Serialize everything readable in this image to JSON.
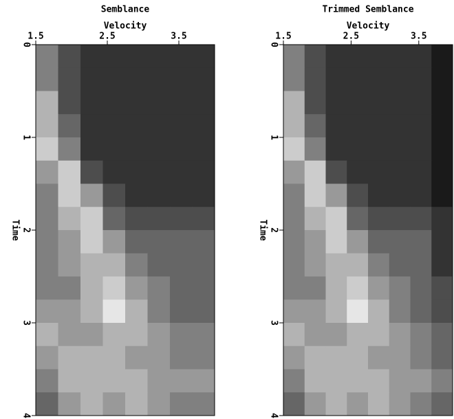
{
  "chart_data": [
    {
      "type": "heatmap",
      "title": "Semblance",
      "xlabel": "Velocity",
      "ylabel": "Time",
      "xlim": [
        1.5,
        4.0
      ],
      "xticks": [
        1.5,
        2.5,
        3.5
      ],
      "ylim": [
        0,
        4
      ],
      "yticks": [
        0,
        1,
        2,
        3,
        4
      ],
      "y_inverted": true,
      "z": [
        [
          0.5,
          0.3,
          0.2,
          0.2,
          0.2,
          0.2,
          0.2,
          0.2
        ],
        [
          0.5,
          0.3,
          0.2,
          0.2,
          0.2,
          0.2,
          0.2,
          0.2
        ],
        [
          0.7,
          0.3,
          0.2,
          0.2,
          0.2,
          0.2,
          0.2,
          0.2
        ],
        [
          0.7,
          0.4,
          0.2,
          0.2,
          0.2,
          0.2,
          0.2,
          0.2
        ],
        [
          0.8,
          0.5,
          0.2,
          0.2,
          0.2,
          0.2,
          0.2,
          0.2
        ],
        [
          0.6,
          0.8,
          0.3,
          0.2,
          0.2,
          0.2,
          0.2,
          0.2
        ],
        [
          0.5,
          0.8,
          0.6,
          0.3,
          0.2,
          0.2,
          0.2,
          0.2
        ],
        [
          0.5,
          0.7,
          0.8,
          0.4,
          0.3,
          0.3,
          0.3,
          0.3
        ],
        [
          0.5,
          0.6,
          0.8,
          0.6,
          0.4,
          0.4,
          0.4,
          0.4
        ],
        [
          0.5,
          0.6,
          0.7,
          0.7,
          0.5,
          0.4,
          0.4,
          0.4
        ],
        [
          0.5,
          0.5,
          0.7,
          0.8,
          0.6,
          0.5,
          0.4,
          0.4
        ],
        [
          0.6,
          0.6,
          0.7,
          0.9,
          0.7,
          0.5,
          0.4,
          0.4
        ],
        [
          0.7,
          0.6,
          0.6,
          0.7,
          0.7,
          0.6,
          0.5,
          0.5
        ],
        [
          0.6,
          0.7,
          0.7,
          0.7,
          0.6,
          0.6,
          0.5,
          0.5
        ],
        [
          0.5,
          0.7,
          0.7,
          0.7,
          0.7,
          0.6,
          0.6,
          0.6
        ],
        [
          0.4,
          0.6,
          0.7,
          0.6,
          0.7,
          0.6,
          0.5,
          0.5
        ]
      ]
    },
    {
      "type": "heatmap",
      "title": "Trimmed Semblance",
      "xlabel": "Velocity",
      "ylabel": "Time",
      "xlim": [
        1.5,
        4.0
      ],
      "xticks": [
        1.5,
        2.5,
        3.5
      ],
      "ylim": [
        0,
        4
      ],
      "yticks": [
        0,
        1,
        2,
        3,
        4
      ],
      "y_inverted": true,
      "z": [
        [
          0.5,
          0.3,
          0.2,
          0.2,
          0.2,
          0.2,
          0.2,
          0.1
        ],
        [
          0.5,
          0.3,
          0.2,
          0.2,
          0.2,
          0.2,
          0.2,
          0.1
        ],
        [
          0.7,
          0.3,
          0.2,
          0.2,
          0.2,
          0.2,
          0.2,
          0.1
        ],
        [
          0.7,
          0.4,
          0.2,
          0.2,
          0.2,
          0.2,
          0.2,
          0.1
        ],
        [
          0.8,
          0.5,
          0.2,
          0.2,
          0.2,
          0.2,
          0.2,
          0.1
        ],
        [
          0.6,
          0.8,
          0.3,
          0.2,
          0.2,
          0.2,
          0.2,
          0.1
        ],
        [
          0.5,
          0.8,
          0.6,
          0.3,
          0.2,
          0.2,
          0.2,
          0.1
        ],
        [
          0.5,
          0.7,
          0.8,
          0.4,
          0.3,
          0.3,
          0.3,
          0.2
        ],
        [
          0.5,
          0.6,
          0.8,
          0.6,
          0.4,
          0.4,
          0.4,
          0.2
        ],
        [
          0.5,
          0.6,
          0.7,
          0.7,
          0.5,
          0.4,
          0.4,
          0.2
        ],
        [
          0.5,
          0.5,
          0.7,
          0.8,
          0.6,
          0.5,
          0.4,
          0.3
        ],
        [
          0.6,
          0.6,
          0.7,
          0.9,
          0.7,
          0.5,
          0.4,
          0.3
        ],
        [
          0.7,
          0.6,
          0.6,
          0.7,
          0.7,
          0.6,
          0.5,
          0.4
        ],
        [
          0.6,
          0.7,
          0.7,
          0.7,
          0.6,
          0.6,
          0.5,
          0.4
        ],
        [
          0.5,
          0.7,
          0.7,
          0.7,
          0.7,
          0.6,
          0.6,
          0.5
        ],
        [
          0.4,
          0.6,
          0.7,
          0.6,
          0.7,
          0.6,
          0.5,
          0.4
        ]
      ]
    }
  ]
}
